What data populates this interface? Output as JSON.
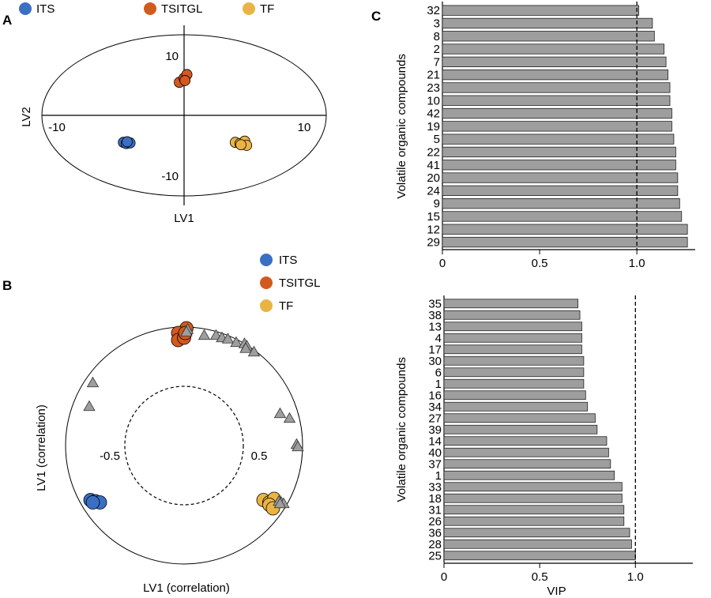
{
  "colors": {
    "ITS": "#3a6fc4",
    "TSITGL": "#d35a1e",
    "TF": "#eab444",
    "loading": "#9e9e9e",
    "bar": "#9e9e9e"
  },
  "chart_data": [
    {
      "panel": "A",
      "type": "scatter",
      "xlabel": "LV1",
      "ylabel": "LV2",
      "xticks": [
        -10,
        10
      ],
      "yticks": [
        10,
        -10
      ],
      "xlim": [
        -15,
        15
      ],
      "ylim": [
        -15,
        15
      ],
      "legend": {
        "placement": "top",
        "entries": [
          "ITS",
          "TSITGL",
          "TF"
        ]
      },
      "ellipse": {
        "rx": 15,
        "ry": 13.3
      },
      "series": [
        {
          "name": "ITS",
          "points": [
            [
              -6.4,
              -4.5
            ],
            [
              -6.1,
              -4.7
            ],
            [
              -5.7,
              -4.6
            ],
            [
              -6.0,
              -4.4
            ]
          ]
        },
        {
          "name": "TSITGL",
          "points": [
            [
              -0.5,
              5.5
            ],
            [
              0.0,
              6.2
            ],
            [
              0.3,
              6.8
            ],
            [
              0.1,
              5.8
            ]
          ]
        },
        {
          "name": "TF",
          "points": [
            [
              5.4,
              -4.5
            ],
            [
              5.9,
              -4.7
            ],
            [
              6.4,
              -4.3
            ],
            [
              6.6,
              -5.0
            ],
            [
              6.0,
              -4.9
            ]
          ]
        }
      ]
    },
    {
      "panel": "B",
      "type": "scatter",
      "xlabel": "LV1 (correlation)",
      "ylabel": "LV1 (correlation)",
      "xticks": [
        -0.5,
        0.5
      ],
      "xlim": [
        -1,
        1
      ],
      "ylim": [
        -1,
        1
      ],
      "legend": {
        "placement": "top-right",
        "entries": [
          "ITS",
          "TSITGL",
          "TF"
        ]
      },
      "circles": [
        1.0,
        0.5
      ],
      "series": [
        {
          "name": "ITS",
          "points": [
            [
              -0.79,
              -0.46
            ],
            [
              -0.75,
              -0.47
            ],
            [
              -0.71,
              -0.48
            ],
            [
              -0.77,
              -0.48
            ]
          ]
        },
        {
          "name": "TSITGL",
          "points": [
            [
              0.02,
              0.99
            ],
            [
              -0.05,
              0.95
            ],
            [
              -0.05,
              0.89
            ],
            [
              0.0,
              0.91
            ],
            [
              0.01,
              0.95
            ]
          ]
        },
        {
          "name": "TF",
          "points": [
            [
              0.67,
              -0.46
            ],
            [
              0.72,
              -0.48
            ],
            [
              0.76,
              -0.45
            ],
            [
              0.72,
              -0.5
            ],
            [
              0.75,
              -0.53
            ]
          ]
        },
        {
          "name": "",
          "marker": "triangle",
          "points": [
            [
              0.03,
              0.98
            ],
            [
              0.02,
              0.96
            ],
            [
              0.17,
              0.93
            ],
            [
              0.27,
              0.93
            ],
            [
              0.32,
              0.91
            ],
            [
              0.37,
              0.9
            ],
            [
              0.44,
              0.87
            ],
            [
              0.51,
              0.86
            ],
            [
              0.53,
              0.84
            ],
            [
              0.52,
              0.82
            ],
            [
              0.59,
              0.79
            ],
            [
              -0.77,
              0.53
            ],
            [
              -0.8,
              0.33
            ],
            [
              0.81,
              0.27
            ],
            [
              0.89,
              0.23
            ],
            [
              0.95,
              0.01
            ],
            [
              0.96,
              -0.01
            ],
            [
              0.8,
              -0.47
            ],
            [
              0.82,
              -0.48
            ],
            [
              0.84,
              -0.49
            ],
            [
              0.81,
              -0.49
            ]
          ]
        }
      ]
    },
    {
      "panel": "C",
      "type": "bar",
      "orientation": "horizontal",
      "ylabel": "Volatile organic compounds",
      "xlabel": "",
      "xticks": [
        "0",
        "0.5",
        "1.0"
      ],
      "xlim": [
        0,
        1.3
      ],
      "threshold": 1.0,
      "categories": [
        "32",
        "3",
        "8",
        "2",
        "7",
        "21",
        "23",
        "10",
        "42",
        "19",
        "5",
        "22",
        "41",
        "20",
        "24",
        "9",
        "15",
        "12",
        "29"
      ],
      "values": [
        1.01,
        1.08,
        1.09,
        1.14,
        1.15,
        1.16,
        1.17,
        1.17,
        1.18,
        1.18,
        1.19,
        1.2,
        1.2,
        1.21,
        1.21,
        1.22,
        1.23,
        1.26,
        1.26
      ]
    },
    {
      "panel": "",
      "type": "bar",
      "orientation": "horizontal",
      "ylabel": "Volatile organic compounds",
      "xlabel": "VIP",
      "xticks": [
        "0",
        "0.5",
        "1.0"
      ],
      "xlim": [
        0,
        1.3
      ],
      "threshold": 1.0,
      "categories": [
        "35",
        "38",
        "13",
        "4",
        "17",
        "30",
        "6",
        "1",
        "16",
        "34",
        "27",
        "39",
        "14",
        "40",
        "37",
        "1",
        "33",
        "18",
        "31",
        "26",
        "36",
        "28",
        "25"
      ],
      "values": [
        0.7,
        0.71,
        0.72,
        0.72,
        0.72,
        0.73,
        0.73,
        0.73,
        0.74,
        0.75,
        0.79,
        0.8,
        0.85,
        0.86,
        0.87,
        0.89,
        0.93,
        0.93,
        0.94,
        0.94,
        0.97,
        0.98,
        1.0
      ]
    }
  ]
}
